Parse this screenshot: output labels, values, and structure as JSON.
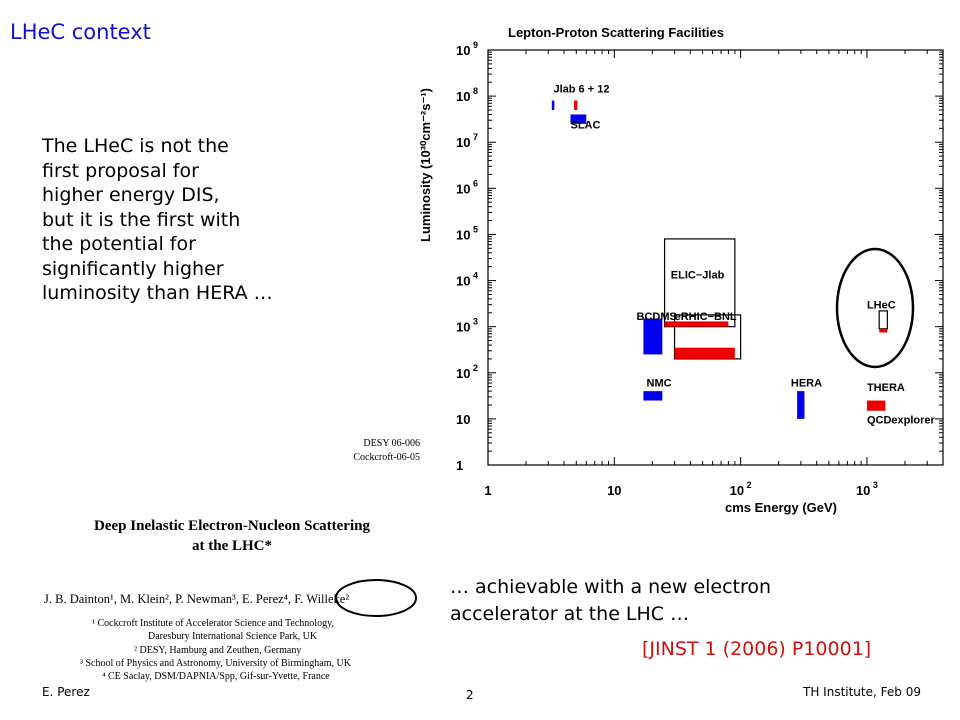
{
  "slide": {
    "title": "LHeC context",
    "intro_lines": [
      "The LHeC is not the",
      "first proposal for",
      "higher energy DIS,",
      "but it is the first with",
      "the potential for",
      "significantly higher",
      "luminosity than HERA …"
    ],
    "bottom_lines": [
      "… achievable with a new electron",
      "accelerator at the LHC …"
    ],
    "citation": "[JINST 1 (2006) P10001]",
    "footer": {
      "author": "E. Perez",
      "page": "2",
      "venue": "TH Institute, Feb 09"
    }
  },
  "paper": {
    "report_numbers": [
      "DESY 06-006",
      "Cockcroft-06-05"
    ],
    "title_lines": [
      "Deep Inelastic Electron-Nucleon Scattering",
      "at the LHC*"
    ],
    "authors": "J. B. Dainton¹, M. Klein², P. Newman³, E. Perez⁴, F. Willeke²",
    "affiliations": [
      "¹ Cockcroft Institute of Accelerator Science and Technology,",
      "Daresbury International Science Park, UK",
      "² DESY, Hamburg and Zeuthen, Germany",
      "³ School of Physics and Astronomy, University of Birmingham, UK",
      "⁴ CE Saclay, DSM/DAPNIA/Spp, Gif-sur-Yvette, France"
    ]
  },
  "chart_data": {
    "type": "heatmap",
    "title": "Lepton-Proton Scattering Facilities",
    "xlabel": "cms Energy  (GeV)",
    "ylabel": "Luminosity (10³⁰cm⁻²s⁻¹)",
    "x_scale": "log",
    "y_scale": "log",
    "xlim": [
      1,
      4000
    ],
    "ylim": [
      1,
      1000000000
    ],
    "x_ticks": [
      {
        "value": 1,
        "label": "1"
      },
      {
        "value": 10,
        "label": "10"
      },
      {
        "value": 100,
        "label": "10",
        "exp": "2"
      },
      {
        "value": 1000,
        "label": "10",
        "exp": "3"
      }
    ],
    "y_ticks": [
      {
        "value": 1,
        "label": "1"
      },
      {
        "value": 10,
        "label": "10"
      },
      {
        "value": 100,
        "label": "10",
        "exp": "2"
      },
      {
        "value": 1000,
        "label": "10",
        "exp": "3"
      },
      {
        "value": 10000,
        "label": "10",
        "exp": "4"
      },
      {
        "value": 100000,
        "label": "10",
        "exp": "5"
      },
      {
        "value": 1000000,
        "label": "10",
        "exp": "6"
      },
      {
        "value": 10000000,
        "label": "10",
        "exp": "7"
      },
      {
        "value": 100000000,
        "label": "10",
        "exp": "8"
      },
      {
        "value": 1000000000,
        "label": "10",
        "exp": "9"
      }
    ],
    "colors": {
      "electron": "#0000ee",
      "positron": "#ee0000",
      "outline": "#000000",
      "highlight": "#000000"
    },
    "facilities": [
      {
        "label": "Jlab 6 + 12",
        "label_pos": [
          3.3,
          120000000
        ],
        "boxes": [
          {
            "x": [
              3.2,
              3.35
            ],
            "y": [
              50000000,
              80000000
            ],
            "color": "electron",
            "fill": true
          },
          {
            "x": [
              4.8,
              5.1
            ],
            "y": [
              50000000,
              80000000
            ],
            "color": "positron",
            "fill": true
          }
        ]
      },
      {
        "label": "SLAC",
        "label_pos": [
          4.5,
          20000000
        ],
        "boxes": [
          {
            "x": [
              4.5,
              6.0
            ],
            "y": [
              25000000,
              40000000
            ],
            "color": "electron",
            "fill": true
          }
        ]
      },
      {
        "label": "ELIC−Jlab",
        "label_pos": [
          28,
          11000
        ],
        "boxes": [
          {
            "x": [
              25,
              90
            ],
            "y": [
              1000,
              80000
            ],
            "color": "outline",
            "fill": false
          }
        ]
      },
      {
        "label": "BCDMS",
        "label_pos": [
          15,
          1400
        ],
        "boxes": [
          {
            "x": [
              17,
              24
            ],
            "y": [
              250,
              1500
            ],
            "color": "electron",
            "fill": true
          }
        ]
      },
      {
        "label": "eRHIC−BNL",
        "label_pos": [
          30,
          1400
        ],
        "boxes": [
          {
            "x": [
              30,
              100
            ],
            "y": [
              200,
              1800
            ],
            "color": "outline",
            "fill": false
          },
          {
            "x": [
              25,
              80
            ],
            "y": [
              1000,
              1300
            ],
            "color": "positron",
            "fill": true
          },
          {
            "x": [
              30,
              90
            ],
            "y": [
              200,
              350
            ],
            "color": "positron",
            "fill": true
          }
        ]
      },
      {
        "label": "NMC",
        "label_pos": [
          18,
          50
        ],
        "boxes": [
          {
            "x": [
              17,
              24
            ],
            "y": [
              25,
              40
            ],
            "color": "electron",
            "fill": true
          }
        ]
      },
      {
        "label": "HERA",
        "label_pos": [
          250,
          50
        ],
        "boxes": [
          {
            "x": [
              280,
              320
            ],
            "y": [
              10,
              40
            ],
            "color": "electron",
            "fill": true
          }
        ]
      },
      {
        "label": "THERA",
        "label_pos": [
          1000,
          40
        ],
        "boxes": [
          {
            "x": [
              1000,
              1400
            ],
            "y": [
              15,
              25
            ],
            "color": "positron",
            "fill": true
          }
        ]
      },
      {
        "label": "QCDexplorer",
        "label_pos": [
          1000,
          8
        ],
        "boxes": []
      },
      {
        "label": "LHeC",
        "label_pos": [
          1000,
          2500
        ],
        "boxes": [
          {
            "x": [
              1250,
              1450
            ],
            "y": [
              900,
              2200
            ],
            "color": "outline",
            "fill": false
          },
          {
            "x": [
              1250,
              1450
            ],
            "y": [
              750,
              900
            ],
            "color": "positron",
            "fill": true
          }
        ]
      }
    ]
  }
}
